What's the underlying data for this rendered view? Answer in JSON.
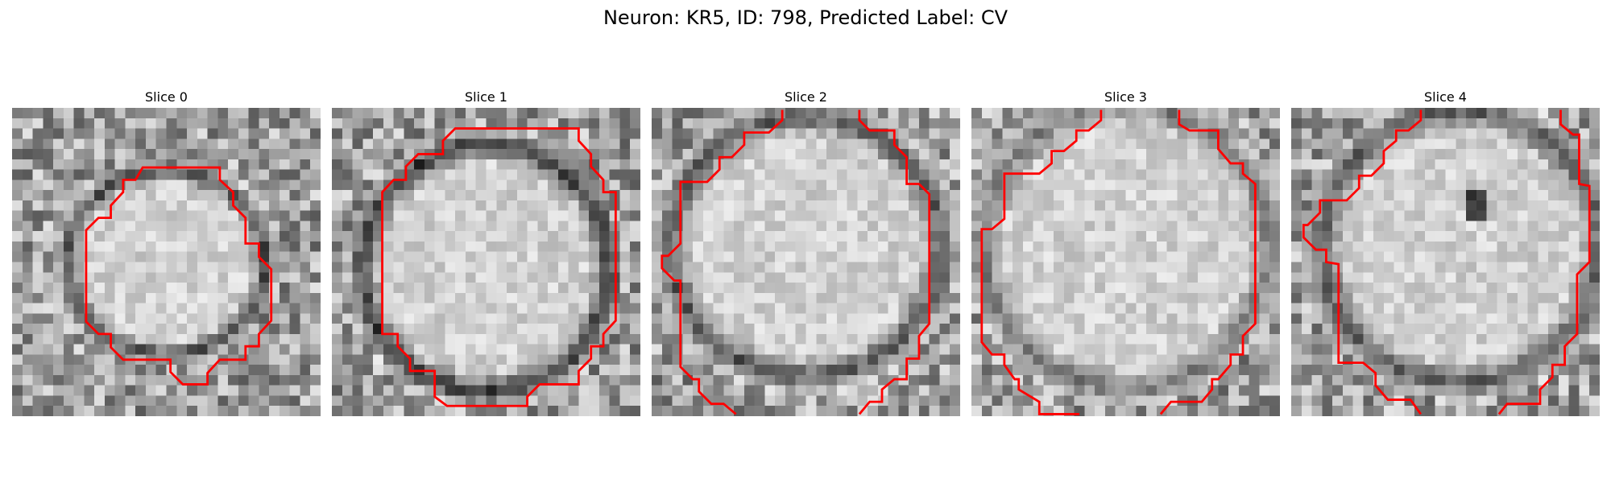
{
  "title": "Neuron: KR5, ID: 798, Predicted Label: CV",
  "colors": {
    "contour": "#ff0000"
  },
  "panels": [
    {
      "label": "Slice 0",
      "seed": 11,
      "blob": [
        0.5,
        0.5,
        0.32,
        0.3
      ],
      "ring_dark": 0.7,
      "spot": null
    },
    {
      "label": "Slice 1",
      "seed": 23,
      "blob": [
        0.5,
        0.52,
        0.4,
        0.4
      ],
      "ring_dark": 0.8,
      "spot": null
    },
    {
      "label": "Slice 2",
      "seed": 37,
      "blob": [
        0.5,
        0.45,
        0.44,
        0.42
      ],
      "ring_dark": 0.65,
      "spot": null
    },
    {
      "label": "Slice 3",
      "seed": 41,
      "blob": [
        0.5,
        0.45,
        0.46,
        0.46
      ],
      "ring_dark": 0.45,
      "spot": null
    },
    {
      "label": "Slice 4",
      "seed": 59,
      "blob": [
        0.55,
        0.45,
        0.45,
        0.44
      ],
      "ring_dark": 0.6,
      "spot": [
        0.6,
        0.32,
        0.05
      ]
    }
  ]
}
